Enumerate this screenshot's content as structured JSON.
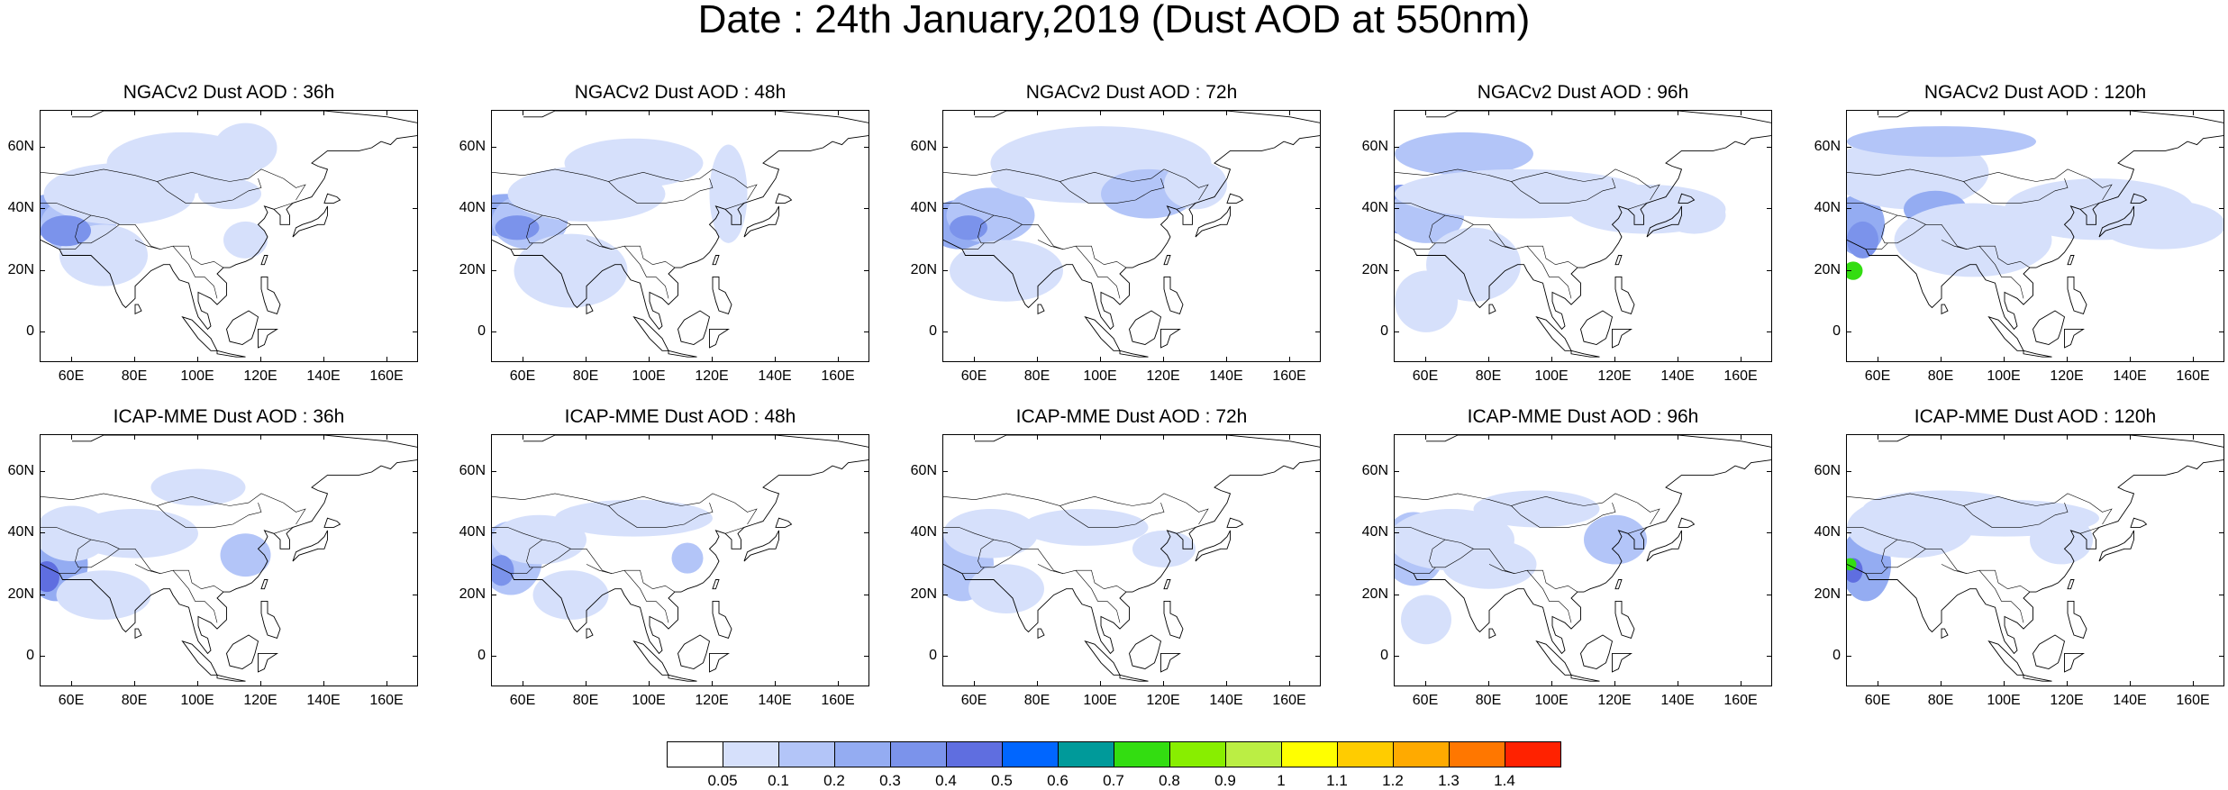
{
  "title": "Date : 24th January,2019 (Dust AOD at 550nm)",
  "axes": {
    "y_ticks": [
      "60N",
      "40N",
      "20N",
      "0"
    ],
    "y_values": [
      60,
      40,
      20,
      0
    ],
    "x_ticks": [
      "60E",
      "80E",
      "100E",
      "120E",
      "140E",
      "160E"
    ],
    "x_values": [
      60,
      80,
      100,
      120,
      140,
      160
    ],
    "lon_range": [
      50,
      170
    ],
    "lat_range": [
      -10,
      72
    ]
  },
  "panels": [
    {
      "title": "NGACv2 Dust AOD : 36h"
    },
    {
      "title": "NGACv2 Dust AOD : 48h"
    },
    {
      "title": "NGACv2 Dust AOD : 72h"
    },
    {
      "title": "NGACv2 Dust AOD : 96h"
    },
    {
      "title": "NGACv2 Dust AOD : 120h"
    },
    {
      "title": "ICAP-MME Dust AOD : 36h"
    },
    {
      "title": "ICAP-MME Dust AOD : 48h"
    },
    {
      "title": "ICAP-MME Dust AOD : 72h"
    },
    {
      "title": "ICAP-MME Dust AOD : 96h"
    },
    {
      "title": "ICAP-MME Dust AOD : 120h"
    }
  ],
  "colorbar": {
    "labels": [
      "0.05",
      "0.1",
      "0.2",
      "0.3",
      "0.4",
      "0.5",
      "0.6",
      "0.7",
      "0.8",
      "0.9",
      "1",
      "1.1",
      "1.2",
      "1.3",
      "1.4"
    ],
    "colors": [
      "#ffffff",
      "#d6e0fb",
      "#b3c5f8",
      "#94acf2",
      "#7b93eb",
      "#5f6ee0",
      "#0066ff",
      "#009a9a",
      "#33dd11",
      "#88ee00",
      "#bbee44",
      "#ffff00",
      "#ffcc00",
      "#ffaa00",
      "#ff7700",
      "#ff2200"
    ]
  },
  "chart_data": {
    "type": "heatmap",
    "title": "Date : 24th January,2019 (Dust AOD at 550nm)",
    "variable": "Dust AOD at 550nm",
    "levels": [
      0.05,
      0.1,
      0.2,
      0.3,
      0.4,
      0.5,
      0.6,
      0.7,
      0.8,
      0.9,
      1,
      1.1,
      1.2,
      1.3,
      1.4
    ],
    "panels": [
      {
        "model": "NGACv2",
        "lead": "36h",
        "max_aod_approx": 0.4
      },
      {
        "model": "NGACv2",
        "lead": "48h",
        "max_aod_approx": 0.4
      },
      {
        "model": "NGACv2",
        "lead": "72h",
        "max_aod_approx": 0.4
      },
      {
        "model": "NGACv2",
        "lead": "96h",
        "max_aod_approx": 0.5
      },
      {
        "model": "NGACv2",
        "lead": "120h",
        "max_aod_approx": 0.8
      },
      {
        "model": "ICAP-MME",
        "lead": "36h",
        "max_aod_approx": 0.5
      },
      {
        "model": "ICAP-MME",
        "lead": "48h",
        "max_aod_approx": 0.4
      },
      {
        "model": "ICAP-MME",
        "lead": "72h",
        "max_aod_approx": 0.3
      },
      {
        "model": "ICAP-MME",
        "lead": "96h",
        "max_aod_approx": 0.4
      },
      {
        "model": "ICAP-MME",
        "lead": "120h",
        "max_aod_approx": 0.8
      }
    ]
  }
}
